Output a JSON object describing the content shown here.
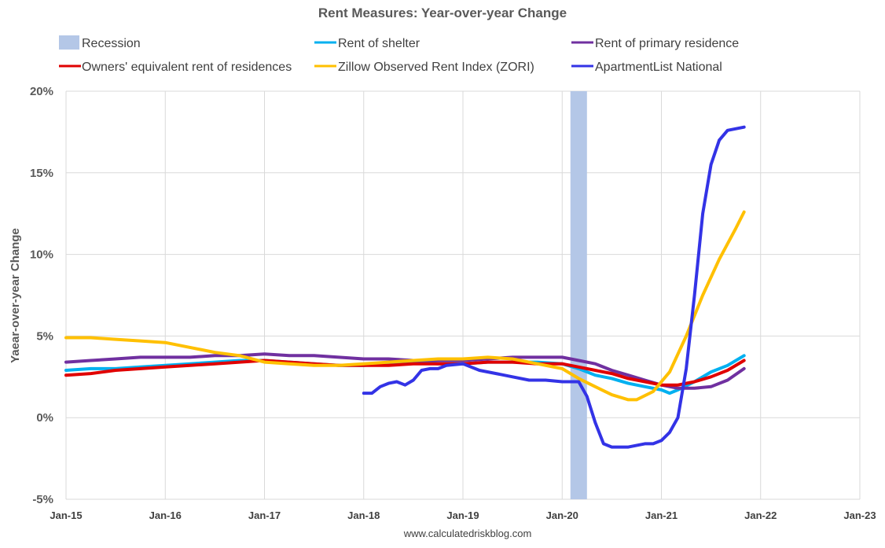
{
  "chart_data": {
    "type": "line",
    "title": "Rent Measures: Year-over-year Change",
    "ylabel": "Yaear-over-year Change",
    "source": "www.calculatedriskblog.com",
    "ylim": [
      -5,
      20
    ],
    "yticks": [
      -5,
      0,
      5,
      10,
      15,
      20
    ],
    "ytick_labels": [
      "-5%",
      "0%",
      "5%",
      "10%",
      "15%",
      "20%"
    ],
    "xlim": [
      "2015-01",
      "2023-01"
    ],
    "xtick_labels": [
      "Jan-15",
      "Jan-16",
      "Jan-17",
      "Jan-18",
      "Jan-19",
      "Jan-20",
      "Jan-21",
      "Jan-22",
      "Jan-23"
    ],
    "grid": true,
    "recession": {
      "name": "Recession",
      "start": "2020-02",
      "end": "2020-04",
      "color": "#b4c7e7"
    },
    "legend_position": "top",
    "series": [
      {
        "name": "Rent of shelter",
        "color": "#00b0f0",
        "points": [
          [
            "2015-01",
            2.9
          ],
          [
            "2015-04",
            3.0
          ],
          [
            "2015-07",
            3.0
          ],
          [
            "2015-10",
            3.1
          ],
          [
            "2016-01",
            3.2
          ],
          [
            "2016-04",
            3.3
          ],
          [
            "2016-07",
            3.4
          ],
          [
            "2016-10",
            3.5
          ],
          [
            "2017-01",
            3.5
          ],
          [
            "2017-04",
            3.4
          ],
          [
            "2017-07",
            3.3
          ],
          [
            "2017-10",
            3.2
          ],
          [
            "2018-01",
            3.2
          ],
          [
            "2018-04",
            3.3
          ],
          [
            "2018-07",
            3.4
          ],
          [
            "2018-10",
            3.3
          ],
          [
            "2019-01",
            3.3
          ],
          [
            "2019-04",
            3.4
          ],
          [
            "2019-07",
            3.4
          ],
          [
            "2019-10",
            3.4
          ],
          [
            "2020-01",
            3.3
          ],
          [
            "2020-03",
            3.0
          ],
          [
            "2020-05",
            2.6
          ],
          [
            "2020-07",
            2.4
          ],
          [
            "2020-09",
            2.1
          ],
          [
            "2020-11",
            1.9
          ],
          [
            "2021-01",
            1.7
          ],
          [
            "2021-02",
            1.5
          ],
          [
            "2021-03",
            1.7
          ],
          [
            "2021-05",
            2.2
          ],
          [
            "2021-07",
            2.8
          ],
          [
            "2021-09",
            3.2
          ],
          [
            "2021-11",
            3.8
          ]
        ]
      },
      {
        "name": "Rent of primary residence",
        "color": "#7030a0",
        "points": [
          [
            "2015-01",
            3.4
          ],
          [
            "2015-04",
            3.5
          ],
          [
            "2015-07",
            3.6
          ],
          [
            "2015-10",
            3.7
          ],
          [
            "2016-01",
            3.7
          ],
          [
            "2016-04",
            3.7
          ],
          [
            "2016-07",
            3.8
          ],
          [
            "2016-10",
            3.8
          ],
          [
            "2017-01",
            3.9
          ],
          [
            "2017-04",
            3.8
          ],
          [
            "2017-07",
            3.8
          ],
          [
            "2017-10",
            3.7
          ],
          [
            "2018-01",
            3.6
          ],
          [
            "2018-04",
            3.6
          ],
          [
            "2018-07",
            3.5
          ],
          [
            "2018-10",
            3.5
          ],
          [
            "2019-01",
            3.5
          ],
          [
            "2019-04",
            3.6
          ],
          [
            "2019-07",
            3.7
          ],
          [
            "2019-10",
            3.7
          ],
          [
            "2020-01",
            3.7
          ],
          [
            "2020-03",
            3.5
          ],
          [
            "2020-05",
            3.3
          ],
          [
            "2020-07",
            2.9
          ],
          [
            "2020-09",
            2.6
          ],
          [
            "2020-11",
            2.3
          ],
          [
            "2021-01",
            2.0
          ],
          [
            "2021-03",
            1.8
          ],
          [
            "2021-05",
            1.8
          ],
          [
            "2021-07",
            1.9
          ],
          [
            "2021-09",
            2.3
          ],
          [
            "2021-11",
            3.0
          ]
        ]
      },
      {
        "name": "Owners' equivalent rent of residences",
        "color": "#e00000",
        "points": [
          [
            "2015-01",
            2.6
          ],
          [
            "2015-04",
            2.7
          ],
          [
            "2015-07",
            2.9
          ],
          [
            "2015-10",
            3.0
          ],
          [
            "2016-01",
            3.1
          ],
          [
            "2016-04",
            3.2
          ],
          [
            "2016-07",
            3.3
          ],
          [
            "2016-10",
            3.4
          ],
          [
            "2017-01",
            3.5
          ],
          [
            "2017-04",
            3.4
          ],
          [
            "2017-07",
            3.3
          ],
          [
            "2017-10",
            3.2
          ],
          [
            "2018-01",
            3.2
          ],
          [
            "2018-04",
            3.2
          ],
          [
            "2018-07",
            3.3
          ],
          [
            "2018-10",
            3.3
          ],
          [
            "2019-01",
            3.3
          ],
          [
            "2019-04",
            3.4
          ],
          [
            "2019-07",
            3.4
          ],
          [
            "2019-10",
            3.3
          ],
          [
            "2020-01",
            3.3
          ],
          [
            "2020-03",
            3.1
          ],
          [
            "2020-05",
            2.9
          ],
          [
            "2020-07",
            2.7
          ],
          [
            "2020-09",
            2.4
          ],
          [
            "2020-11",
            2.2
          ],
          [
            "2021-01",
            2.0
          ],
          [
            "2021-03",
            2.0
          ],
          [
            "2021-05",
            2.2
          ],
          [
            "2021-07",
            2.5
          ],
          [
            "2021-09",
            2.9
          ],
          [
            "2021-11",
            3.5
          ]
        ]
      },
      {
        "name": "Zillow Observed Rent Index (ZORI)",
        "color": "#ffc000",
        "points": [
          [
            "2015-01",
            4.9
          ],
          [
            "2015-04",
            4.9
          ],
          [
            "2015-07",
            4.8
          ],
          [
            "2015-10",
            4.7
          ],
          [
            "2016-01",
            4.6
          ],
          [
            "2016-04",
            4.3
          ],
          [
            "2016-07",
            4.0
          ],
          [
            "2016-10",
            3.8
          ],
          [
            "2017-01",
            3.4
          ],
          [
            "2017-04",
            3.3
          ],
          [
            "2017-07",
            3.2
          ],
          [
            "2017-10",
            3.2
          ],
          [
            "2018-01",
            3.3
          ],
          [
            "2018-04",
            3.4
          ],
          [
            "2018-07",
            3.5
          ],
          [
            "2018-10",
            3.6
          ],
          [
            "2019-01",
            3.6
          ],
          [
            "2019-04",
            3.7
          ],
          [
            "2019-07",
            3.6
          ],
          [
            "2019-10",
            3.3
          ],
          [
            "2020-01",
            3.0
          ],
          [
            "2020-03",
            2.4
          ],
          [
            "2020-05",
            1.9
          ],
          [
            "2020-07",
            1.4
          ],
          [
            "2020-09",
            1.1
          ],
          [
            "2020-10",
            1.1
          ],
          [
            "2020-12",
            1.6
          ],
          [
            "2021-02",
            2.8
          ],
          [
            "2021-04",
            5.0
          ],
          [
            "2021-06",
            7.5
          ],
          [
            "2021-08",
            9.7
          ],
          [
            "2021-10",
            11.6
          ],
          [
            "2021-11",
            12.6
          ]
        ]
      },
      {
        "name": "ApartmentList National",
        "color": "#3333e6",
        "points": [
          [
            "2018-01",
            1.5
          ],
          [
            "2018-02",
            1.5
          ],
          [
            "2018-03",
            1.9
          ],
          [
            "2018-04",
            2.1
          ],
          [
            "2018-05",
            2.2
          ],
          [
            "2018-06",
            2.0
          ],
          [
            "2018-07",
            2.3
          ],
          [
            "2018-08",
            2.9
          ],
          [
            "2018-09",
            3.0
          ],
          [
            "2018-10",
            3.0
          ],
          [
            "2018-11",
            3.2
          ],
          [
            "2019-01",
            3.3
          ],
          [
            "2019-03",
            2.9
          ],
          [
            "2019-05",
            2.7
          ],
          [
            "2019-07",
            2.5
          ],
          [
            "2019-09",
            2.3
          ],
          [
            "2019-11",
            2.3
          ],
          [
            "2020-01",
            2.2
          ],
          [
            "2020-03",
            2.2
          ],
          [
            "2020-04",
            1.3
          ],
          [
            "2020-05",
            -0.3
          ],
          [
            "2020-06",
            -1.6
          ],
          [
            "2020-07",
            -1.8
          ],
          [
            "2020-09",
            -1.8
          ],
          [
            "2020-11",
            -1.6
          ],
          [
            "2020-12",
            -1.6
          ],
          [
            "2021-01",
            -1.4
          ],
          [
            "2021-02",
            -0.9
          ],
          [
            "2021-03",
            0.0
          ],
          [
            "2021-04",
            3.0
          ],
          [
            "2021-05",
            7.5
          ],
          [
            "2021-06",
            12.5
          ],
          [
            "2021-07",
            15.5
          ],
          [
            "2021-08",
            17.0
          ],
          [
            "2021-09",
            17.6
          ],
          [
            "2021-11",
            17.8
          ]
        ]
      }
    ]
  }
}
